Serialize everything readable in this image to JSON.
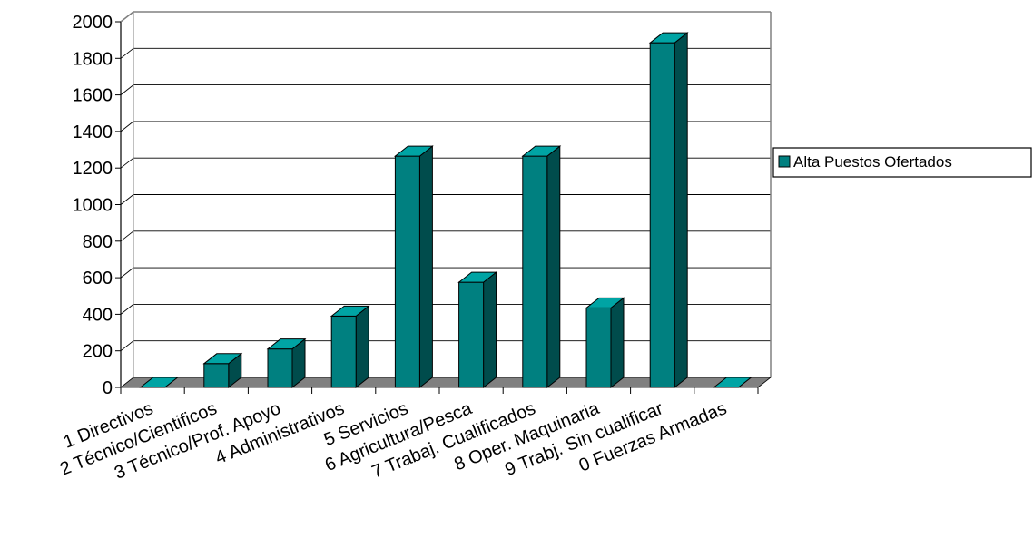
{
  "chart_data": {
    "type": "bar",
    "style": "3d-column",
    "categories": [
      "1 Directivos",
      "2 Técnico/Cientificos",
      "3 Técnico/Prof. Apoyo",
      "4 Administrativos",
      "5 Servicios",
      "6 Agricultura/Pesca",
      "7 Trabaj. Cualificados",
      "8 Oper. Maquinaria",
      "9 Trabj. Sin cualificar",
      "0 Fuerzas Armadas"
    ],
    "series": [
      {
        "name": "Alta Puestos Ofertados",
        "values": [
          0,
          130,
          210,
          390,
          1265,
          575,
          1265,
          435,
          1885,
          0
        ]
      }
    ],
    "ylim": [
      0,
      2000
    ],
    "yticks": [
      "0",
      "200",
      "400",
      "600",
      "800",
      "1000",
      "1200",
      "1400",
      "1600",
      "1800",
      "2000"
    ],
    "grid": true,
    "legend": "right",
    "colors": {
      "bar_front": "#008080",
      "bar_side": "#004c4c",
      "bar_top": "#00a4a4",
      "floor": "#808080",
      "grid": "#000000",
      "frame": "#808080"
    }
  }
}
